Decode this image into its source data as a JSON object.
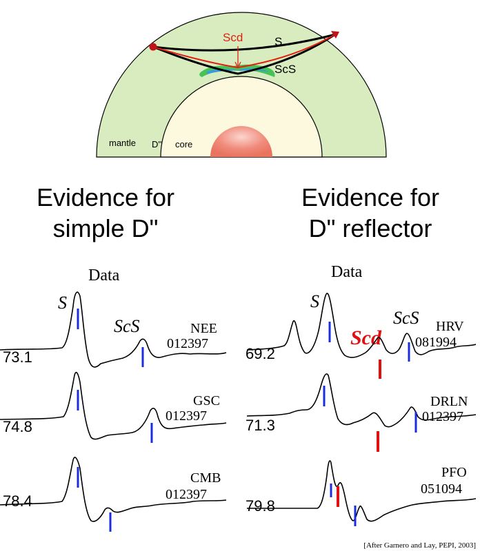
{
  "earth_diagram": {
    "labels": {
      "s": "S",
      "scs": "ScS",
      "scd": "Scd",
      "mantle": "mantle",
      "d_double_prime": "D''",
      "core": "core"
    },
    "colors": {
      "mantle": "#d9ecbf",
      "core_outer": "#fdf9df",
      "inner_core": "#f08a7a",
      "d_layer_green": "#47c15a",
      "d_layer_blue": "#3a9bdc",
      "ray_s": "#000000",
      "ray_scd": "#e02010",
      "source": "#c0141a"
    }
  },
  "headings": {
    "left": [
      "Evidence for",
      "simple D\""
    ],
    "right": [
      "Evidence for",
      "D\" reflector"
    ]
  },
  "panels": {
    "left": {
      "data_label": "Data",
      "phase_s": "S",
      "phase_scs": "ScS",
      "traces": [
        {
          "distance": "73.1",
          "station": "NEE",
          "date": "012397"
        },
        {
          "distance": "74.8",
          "station": "GSC",
          "date": "012397"
        },
        {
          "distance": "78.4",
          "station": "CMB",
          "date": "012397"
        }
      ]
    },
    "right": {
      "data_label": "Data",
      "phase_s": "S",
      "phase_scs": "ScS",
      "phase_scd": "Scd",
      "traces": [
        {
          "distance": "69.2",
          "station": "HRV",
          "date": "081994"
        },
        {
          "distance": "71.3",
          "station": "DRLN",
          "date": "012397"
        },
        {
          "distance": "79.8",
          "station": "PFO",
          "date": "051094"
        }
      ]
    }
  },
  "colors": {
    "marker_blue": "#1a2ee0",
    "marker_red": "#e01010",
    "scd_label": "#e01010"
  },
  "citation": "[After Garnero and Lay, PEPI, 2003]"
}
